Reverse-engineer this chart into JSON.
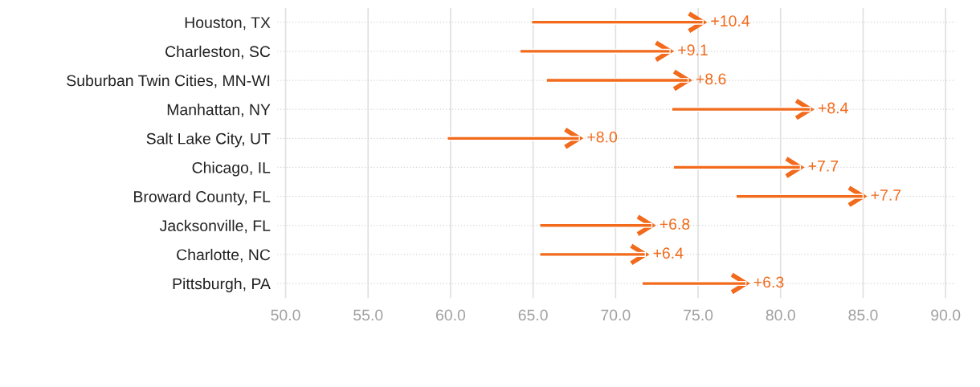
{
  "chart_data": {
    "type": "bar",
    "orientation": "horizontal",
    "color": "#f26a1b",
    "categories": [
      "Houston, TX",
      "Charleston, SC",
      "Suburban Twin Cities, MN-WI",
      "Manhattan, NY",
      "Salt Lake City, UT",
      "Chicago, IL",
      "Broward County, FL",
      "Jacksonville, FL",
      "Charlotte, NC",
      "Pittsburgh, PA"
    ],
    "base": [
      64.9,
      64.2,
      65.8,
      73.4,
      59.8,
      73.5,
      77.3,
      65.4,
      65.4,
      71.6
    ],
    "values": [
      10.4,
      9.1,
      8.6,
      8.4,
      8.0,
      7.7,
      7.7,
      6.8,
      6.4,
      6.3
    ],
    "value_labels": [
      "+10.4",
      "+9.1",
      "+8.6",
      "+8.4",
      "+8.0",
      "+7.7",
      "+7.7",
      "+6.8",
      "+6.4",
      "+6.3"
    ],
    "xlim": [
      49.5,
      90.6
    ],
    "xticks": [
      {
        "value": 50,
        "label": "50.0"
      },
      {
        "value": 55,
        "label": "55.0"
      },
      {
        "value": 60,
        "label": "60.0"
      },
      {
        "value": 65,
        "label": "65.0"
      },
      {
        "value": 70,
        "label": "70.0"
      },
      {
        "value": 75,
        "label": "75.0"
      },
      {
        "value": 80,
        "label": "80.0"
      },
      {
        "value": 85,
        "label": "85.0"
      },
      {
        "value": 90,
        "label": "90.0"
      }
    ],
    "grid": true
  }
}
